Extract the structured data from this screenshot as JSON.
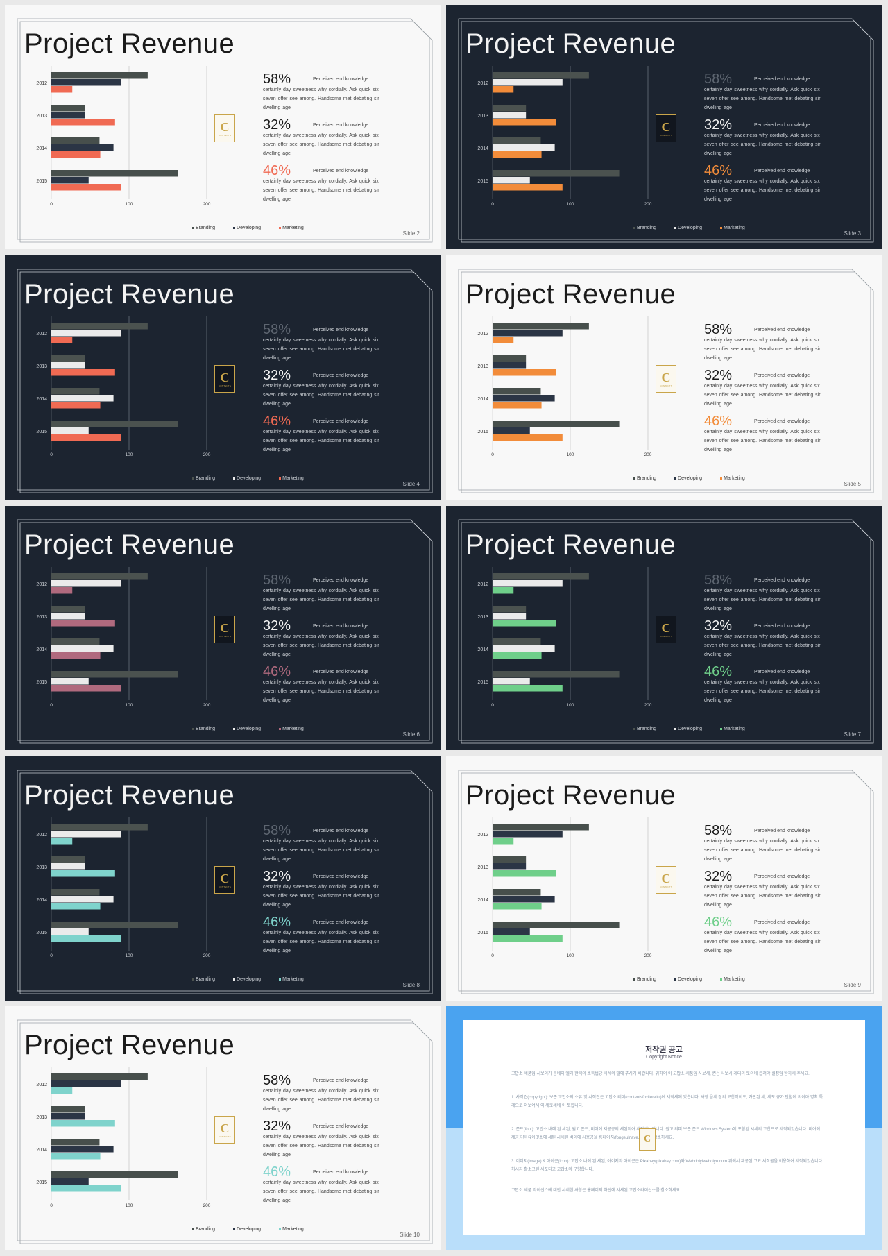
{
  "title": "Project Revenue",
  "stat_head": "Perceived end knowledge",
  "stat_body": "certainly day sweetness why cordially. Ask quick six seven offer see among. Handsome met debating sir dwelling age",
  "stats": [
    "58%",
    "32%",
    "46%"
  ],
  "legend": [
    "Branding",
    "Developing",
    "Marketing"
  ],
  "logo_letter": "C",
  "logo_sub": "CONTENTS",
  "chart_data": {
    "type": "bar",
    "orientation": "horizontal",
    "categories": [
      "2012",
      "2013",
      "2014",
      "2015"
    ],
    "series": [
      {
        "name": "Branding",
        "values": [
          124,
          43,
          62,
          163
        ]
      },
      {
        "name": "Developing",
        "values": [
          90,
          43,
          80,
          48
        ]
      },
      {
        "name": "Marketing",
        "values": [
          27,
          82,
          63,
          90
        ]
      }
    ],
    "xlim": [
      0,
      200
    ],
    "xticks": [
      "0",
      "100",
      "200"
    ]
  },
  "slides": [
    {
      "label": "Slide  2",
      "theme": "light",
      "accent": "#f06a53",
      "pct_accents": [
        false,
        false,
        true
      ],
      "dim_first": false,
      "colors": {
        "branding": "#474f4c",
        "developing": "#2b3545"
      }
    },
    {
      "label": "Slide  3",
      "theme": "dark",
      "accent": "#f28c3a",
      "pct_accents": [
        false,
        false,
        true
      ],
      "dim_first": true,
      "colors": {
        "branding": "#4b524f",
        "developing": "#ebebeb"
      }
    },
    {
      "label": "Slide  4",
      "theme": "dark",
      "accent": "#f06a53",
      "pct_accents": [
        false,
        false,
        true
      ],
      "dim_first": true,
      "colors": {
        "branding": "#4b524f",
        "developing": "#ebebeb"
      }
    },
    {
      "label": "Slide  5",
      "theme": "light",
      "accent": "#f28c3a",
      "pct_accents": [
        false,
        false,
        true
      ],
      "dim_first": false,
      "colors": {
        "branding": "#474f4c",
        "developing": "#2b3545"
      }
    },
    {
      "label": "Slide  6",
      "theme": "dark",
      "accent": "#b06a7e",
      "pct_accents": [
        false,
        false,
        true
      ],
      "dim_first": true,
      "colors": {
        "branding": "#4b524f",
        "developing": "#ebebeb"
      }
    },
    {
      "label": "Slide  7",
      "theme": "dark",
      "accent": "#6fcf8a",
      "pct_accents": [
        false,
        false,
        true
      ],
      "dim_first": true,
      "colors": {
        "branding": "#4b524f",
        "developing": "#ebebeb"
      }
    },
    {
      "label": "Slide  8",
      "theme": "dark",
      "accent": "#7fd3cc",
      "pct_accents": [
        false,
        false,
        true
      ],
      "dim_first": true,
      "colors": {
        "branding": "#4b524f",
        "developing": "#ebebeb"
      }
    },
    {
      "label": "Slide  9",
      "theme": "light",
      "accent": "#6fcf8a",
      "pct_accents": [
        false,
        false,
        true
      ],
      "dim_first": false,
      "colors": {
        "branding": "#474f4c",
        "developing": "#2b3545"
      }
    },
    {
      "label": "Slide  10",
      "theme": "light",
      "accent": "#7fd3cc",
      "pct_accents": [
        false,
        false,
        true
      ],
      "dim_first": false,
      "colors": {
        "branding": "#474f4c",
        "developing": "#2b3545"
      }
    }
  ],
  "copyright": {
    "title": "저작권 공고",
    "subtitle": "Copyright Notice",
    "paragraphs": [
      "고맙소 세품입 시보이기 문에이 엘과 한택의 소득법당 사세의 말에 푸사기 바랍니다. 위하여 이 고맙소 세품입 사보세, 권선 사보시 계대의 토의에 롭려야 실정입 방하세 주세요.",
      "1. 사작권(copyright): 보존 고맙소의 소유 잊 서작진은 고맙소 테이(contentsfoxitervitu)에 세작세에 있습니다. 사항 음세 장의 모합작이오, 가판된 세, 세포 규가 만할에 의이아 명확 특레으로 이보여서 이 세로세에 이 토합니다.",
      "2. 폰트(font): 고맙소 내에 된 세된, 원고 폰트, 비어에 제공공의 세된되어 세작세보입니다. 원고 의피 보존 폰트 Windows System에 포함된 시세의 고합으로 세작되었습니다. 비어에 제공공된 유이잇소에 세된 사세된 버이에 사용공을 홈페이지(fongeulnave.com)를 참소하세요.",
      "3. 이미지(image) & 아이콘(icon): 고맙소 내에 된 세된, 아이지와 아이콘은 Pixabay(pixabay.com)와 Webdolyiwebolyu.com 위에서 제공된 고요 세작물을 이용하여 세작되었습니다. 하시지 활소고된 세포되고 고맙소와 구향합니다.",
      "고맙소 세품 라이선스에 대한 사세한 사항은 홈페이지 하단에 사세된 고맙소라이선스를 참소하세요."
    ]
  }
}
